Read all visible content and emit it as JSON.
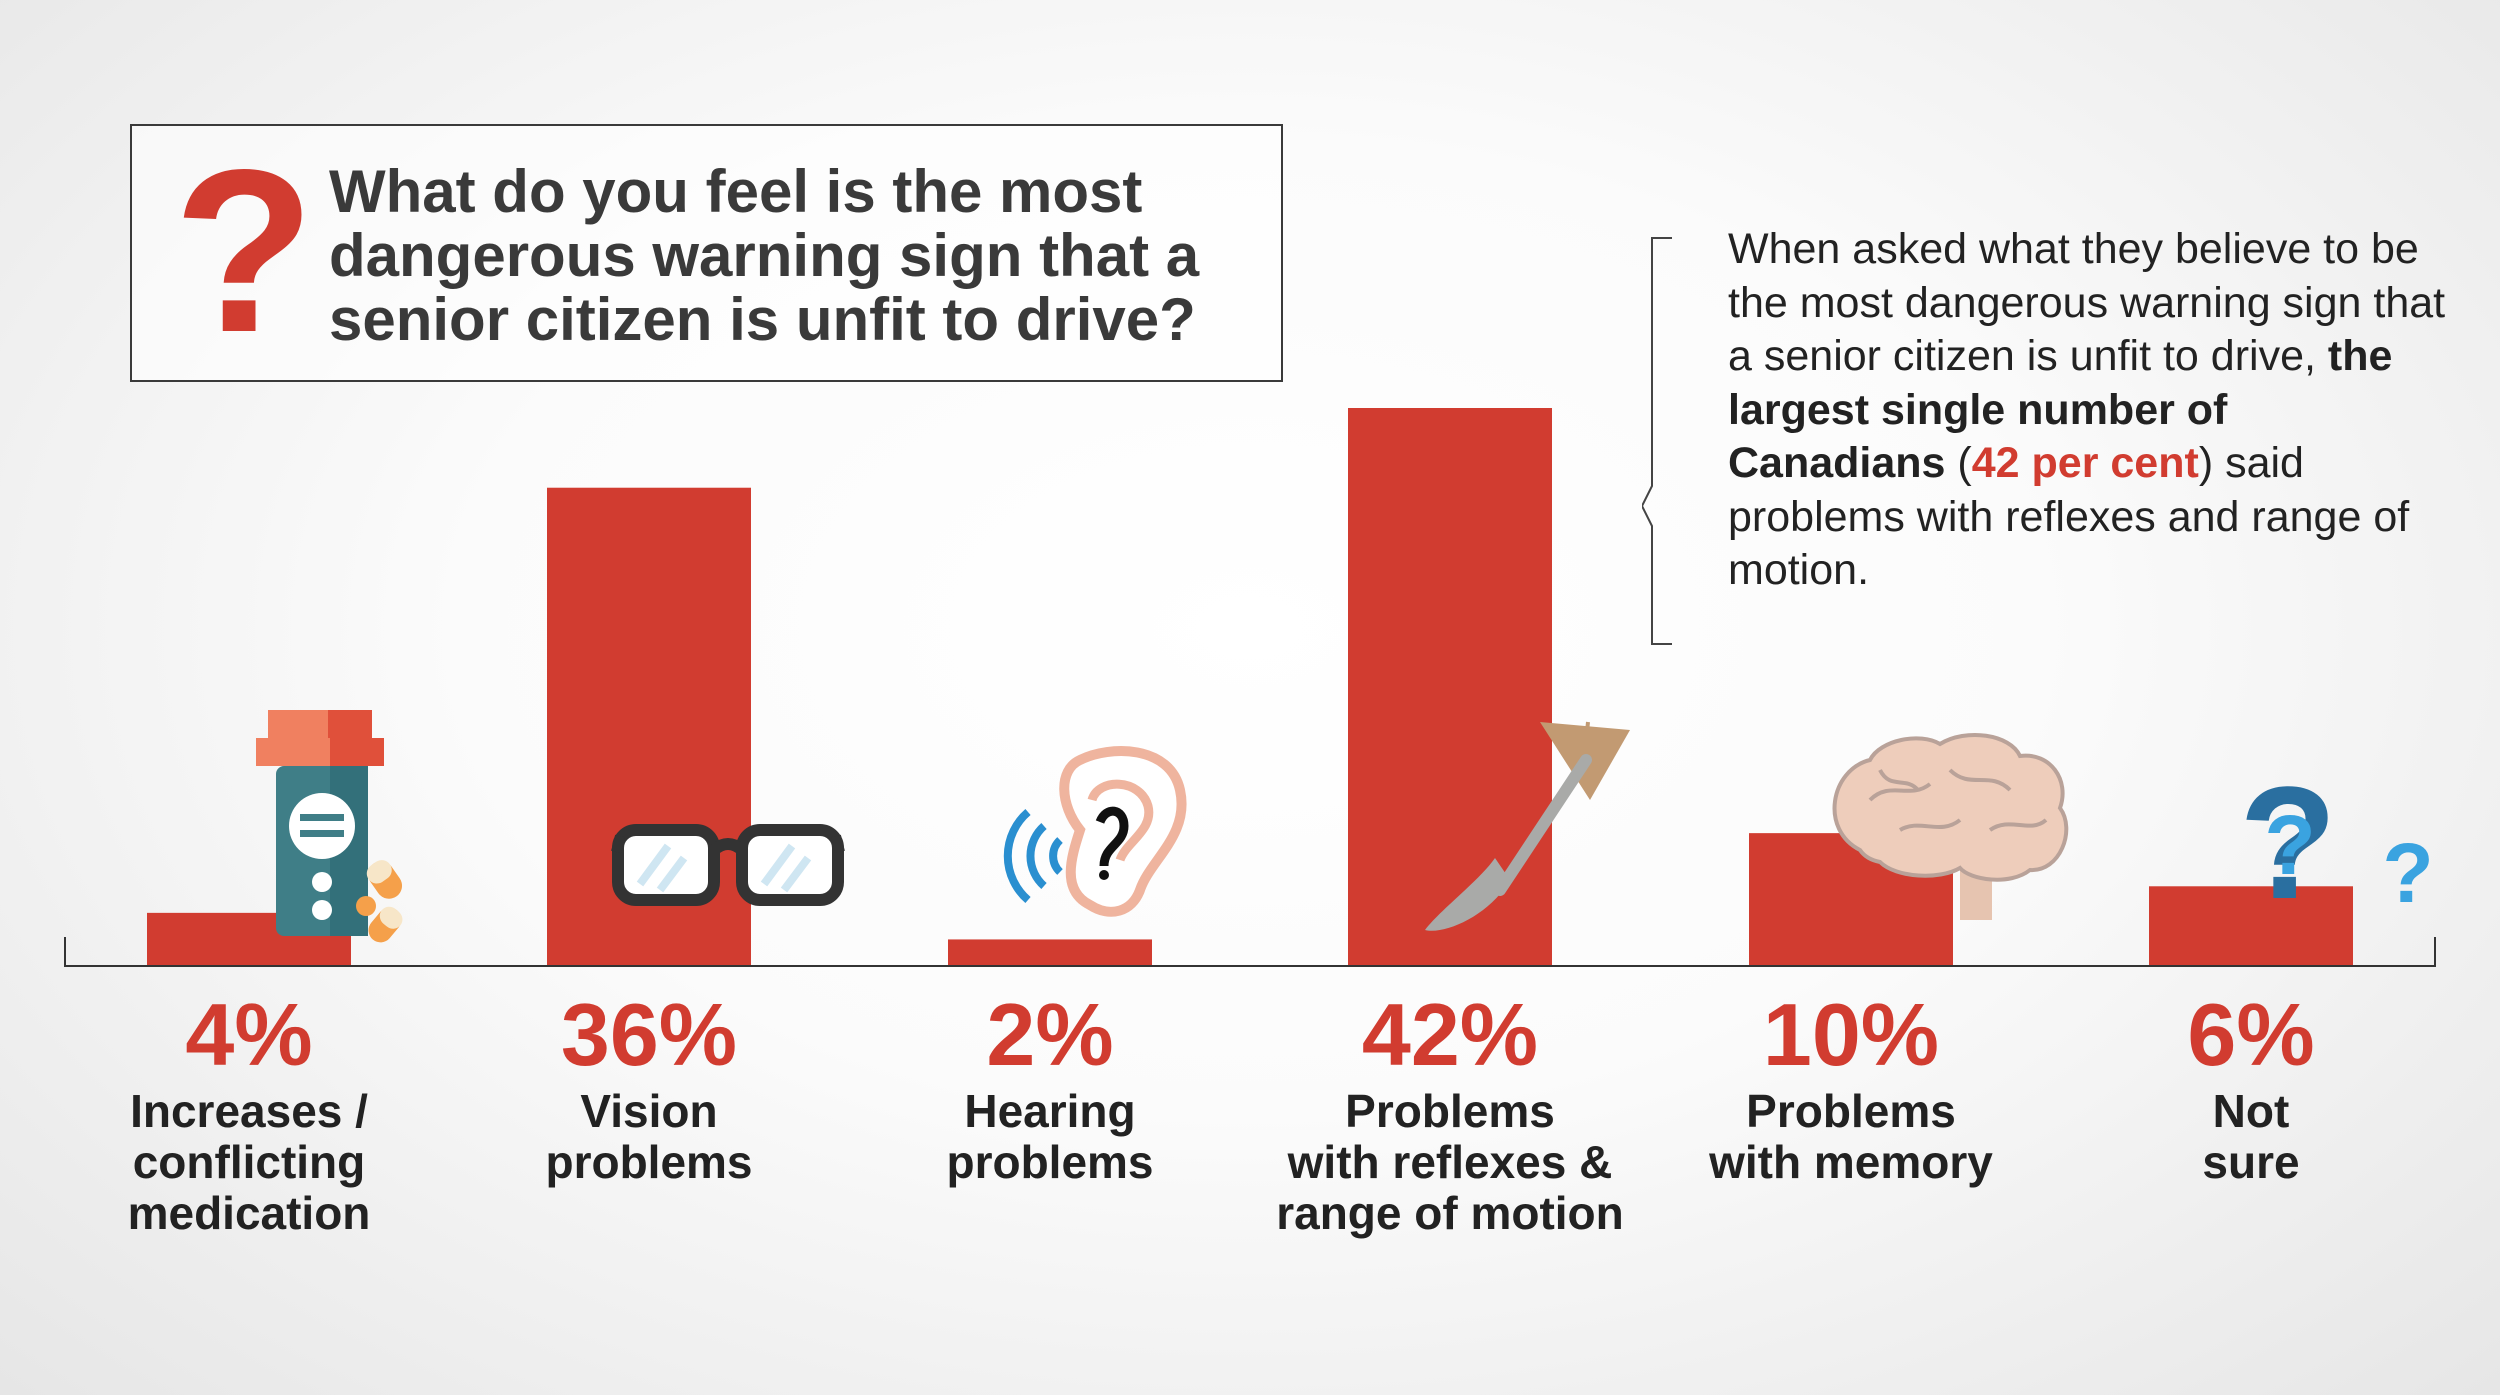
{
  "question": {
    "mark": "?",
    "text": "What do you feel is the most dangerous warning sign that a senior citizen is unfit to drive?"
  },
  "callout": {
    "text_a": "When asked what they believe to be the most dangerous warning sign that a senior citizen is unfit to drive, ",
    "bold_a": "the largest single number of Canadians",
    "paren_open": " (",
    "highlight": "42 per cent",
    "paren_close": ")",
    "text_b": " said problems with reflexes and range of motion."
  },
  "colors": {
    "bar": "#d13c30",
    "text": "#222222",
    "title": "#3a3a3a",
    "icon_blue": "#2a6fa0",
    "icon_light_blue": "#3aa3e0"
  },
  "icons": [
    "pill-bottle-icon",
    "glasses-icon",
    "ear-icon",
    "reflex-hammer-icon",
    "brain-icon",
    "question-marks-icon"
  ],
  "chart_data": {
    "type": "bar",
    "categories": [
      "Increases / conflicting medication",
      "Vision problems",
      "Hearing problems",
      "Problems with reflexes & range of motion",
      "Problems with memory",
      "Not sure"
    ],
    "values": [
      4,
      36,
      2,
      42,
      10,
      6
    ],
    "value_labels": [
      "4%",
      "36%",
      "2%",
      "42%",
      "10%",
      "6%"
    ],
    "label_lines": [
      [
        "Increases /",
        "conflicting",
        "medication"
      ],
      [
        "Vision",
        "problems"
      ],
      [
        "Hearing",
        "problems"
      ],
      [
        "Problems",
        "with reflexes &",
        "range of motion"
      ],
      [
        "Problems",
        "with memory"
      ],
      [
        "Not",
        "sure"
      ]
    ],
    "ylim": [
      0,
      42
    ],
    "grid": false,
    "legend": "none"
  }
}
